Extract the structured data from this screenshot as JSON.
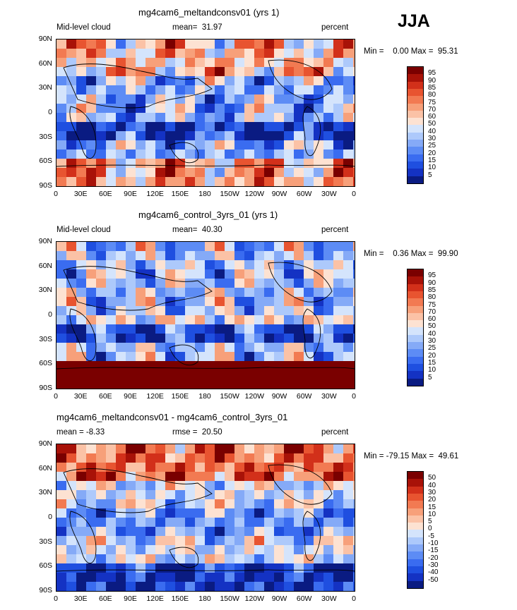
{
  "season_label": "JJA",
  "colors": {
    "scale": [
      "#0a1b82",
      "#1432c3",
      "#1f4fe0",
      "#3a6cf0",
      "#5d8cf5",
      "#85aaf7",
      "#adc9fb",
      "#d4e4fc",
      "#fde2d2",
      "#fbc2a6",
      "#f7a07a",
      "#f27a52",
      "#e85430",
      "#d2301a",
      "#a81208",
      "#7a0000"
    ],
    "background": "#ffffff"
  },
  "panels": [
    {
      "title": "mg4cam6_meltandconsv01 (yrs 1)",
      "left_label": "Mid-level cloud",
      "stat_label": "mean=  31.97",
      "units": "percent",
      "min_max": "Min =    0.00 Max =  95.31",
      "colorbar_labels": [
        "95",
        "90",
        "85",
        "80",
        "75",
        "70",
        "60",
        "50",
        "40",
        "30",
        "25",
        "20",
        "15",
        "10",
        "5"
      ],
      "chart_data": {
        "type": "heatmap",
        "variable": "Mid-level cloud",
        "units": "percent",
        "mean": 31.97,
        "min": 0.0,
        "max": 95.31,
        "lat_ticks": [
          "90N",
          "60N",
          "30N",
          "0",
          "30S",
          "60S",
          "90S"
        ],
        "lon_ticks": [
          "0",
          "30E",
          "60E",
          "90E",
          "120E",
          "150E",
          "180",
          "150W",
          "120W",
          "90W",
          "60W",
          "30W",
          "0"
        ],
        "levels": [
          5,
          10,
          15,
          20,
          25,
          30,
          40,
          50,
          60,
          70,
          75,
          80,
          85,
          90,
          95
        ]
      }
    },
    {
      "title": "mg4cam6_control_3yrs_01 (yrs 1)",
      "left_label": "Mid-level cloud",
      "stat_label": "mean=  40.30",
      "units": "percent",
      "min_max": "Min =    0.36 Max =  99.90",
      "colorbar_labels": [
        "95",
        "90",
        "85",
        "80",
        "75",
        "70",
        "60",
        "50",
        "40",
        "30",
        "25",
        "20",
        "15",
        "10",
        "5"
      ],
      "chart_data": {
        "type": "heatmap",
        "variable": "Mid-level cloud",
        "units": "percent",
        "mean": 40.3,
        "min": 0.36,
        "max": 99.9,
        "lat_ticks": [
          "90N",
          "60N",
          "30N",
          "0",
          "30S",
          "60S",
          "90S"
        ],
        "lon_ticks": [
          "0",
          "30E",
          "60E",
          "90E",
          "120E",
          "150E",
          "180",
          "150W",
          "120W",
          "90W",
          "60W",
          "30W",
          "0"
        ],
        "levels": [
          5,
          10,
          15,
          20,
          25,
          30,
          40,
          50,
          60,
          70,
          75,
          80,
          85,
          90,
          95
        ]
      }
    },
    {
      "title": "mg4cam6_meltandconsv01 - mg4cam6_control_3yrs_01",
      "left_label": "mean =  -8.33",
      "stat_label": "rmse =  20.50",
      "units": "percent",
      "min_max": "Min = -79.15 Max =  49.61",
      "colorbar_labels": [
        "50",
        "40",
        "30",
        "20",
        "15",
        "10",
        "5",
        "0",
        "-5",
        "-10",
        "-15",
        "-20",
        "-30",
        "-40",
        "-50"
      ],
      "chart_data": {
        "type": "heatmap",
        "variable": "Mid-level cloud difference",
        "units": "percent",
        "mean": -8.33,
        "rmse": 20.5,
        "min": -79.15,
        "max": 49.61,
        "lat_ticks": [
          "90N",
          "60N",
          "30N",
          "0",
          "30S",
          "60S",
          "90S"
        ],
        "lon_ticks": [
          "0",
          "30E",
          "60E",
          "90E",
          "120E",
          "150E",
          "180",
          "150W",
          "120W",
          "90W",
          "60W",
          "30W",
          "0"
        ],
        "levels": [
          -50,
          -40,
          -30,
          -20,
          -15,
          -10,
          -5,
          0,
          5,
          10,
          15,
          20,
          30,
          40,
          50
        ]
      }
    }
  ]
}
